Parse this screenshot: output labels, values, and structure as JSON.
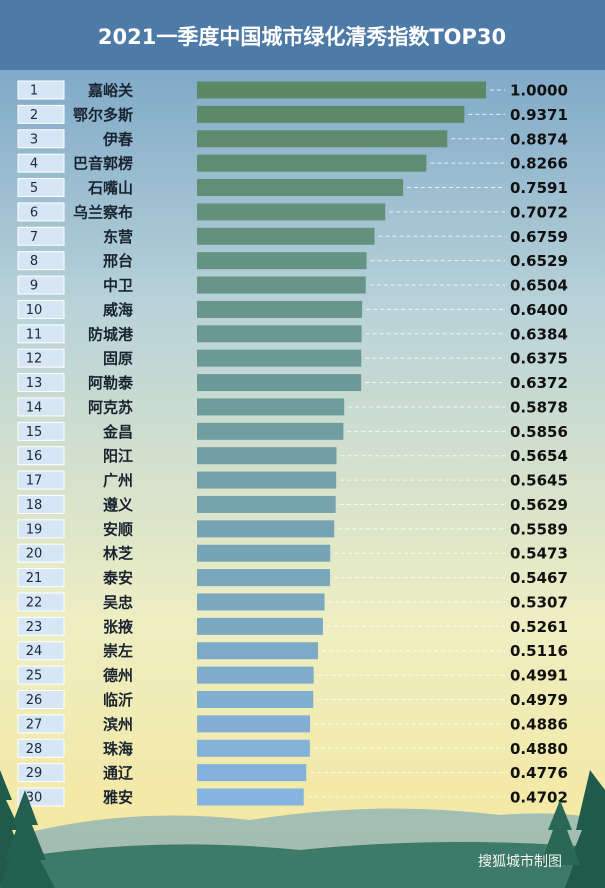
{
  "chart_data": {
    "type": "bar",
    "orientation": "horizontal",
    "title": "2021一季度中国城市绿化清秀指数TOP30",
    "ranks": [
      1,
      2,
      3,
      4,
      5,
      6,
      7,
      8,
      9,
      10,
      11,
      12,
      13,
      14,
      15,
      16,
      17,
      18,
      19,
      20,
      21,
      22,
      23,
      24,
      25,
      26,
      27,
      28,
      29,
      30
    ],
    "categories": [
      "嘉峪关",
      "鄂尔多斯",
      "伊春",
      "巴音郭楞",
      "石嘴山",
      "乌兰察布",
      "东营",
      "邢台",
      "中卫",
      "威海",
      "防城港",
      "固原",
      "阿勒泰",
      "阿克苏",
      "金昌",
      "阳江",
      "广州",
      "遵义",
      "安顺",
      "林芝",
      "泰安",
      "吴忠",
      "张掖",
      "崇左",
      "德州",
      "临沂",
      "滨州",
      "珠海",
      "通辽",
      "雅安"
    ],
    "values": [
      1.0,
      0.9371,
      0.8874,
      0.8266,
      0.7591,
      0.7072,
      0.6759,
      0.6529,
      0.6504,
      0.64,
      0.6384,
      0.6375,
      0.6372,
      0.5878,
      0.5856,
      0.5654,
      0.5645,
      0.5629,
      0.5589,
      0.5473,
      0.5467,
      0.5307,
      0.5261,
      0.5116,
      0.4991,
      0.4979,
      0.4886,
      0.488,
      0.4776,
      0.4702
    ],
    "value_labels": [
      "1.0000",
      "0.9371",
      "0.8874",
      "0.8266",
      "0.7591",
      "0.7072",
      "0.6759",
      "0.6529",
      "0.6504",
      "0.6400",
      "0.6384",
      "0.6375",
      "0.6372",
      "0.5878",
      "0.5856",
      "0.5654",
      "0.5645",
      "0.5629",
      "0.5589",
      "0.5473",
      "0.5467",
      "0.5307",
      "0.5261",
      "0.5116",
      "0.4991",
      "0.4979",
      "0.4886",
      "0.4880",
      "0.4776",
      "0.4702"
    ],
    "xlim": [
      0.16,
      1.0
    ],
    "colors": [
      "#5b8865",
      "#86b4e0"
    ],
    "source": "搜狐城市制图"
  }
}
